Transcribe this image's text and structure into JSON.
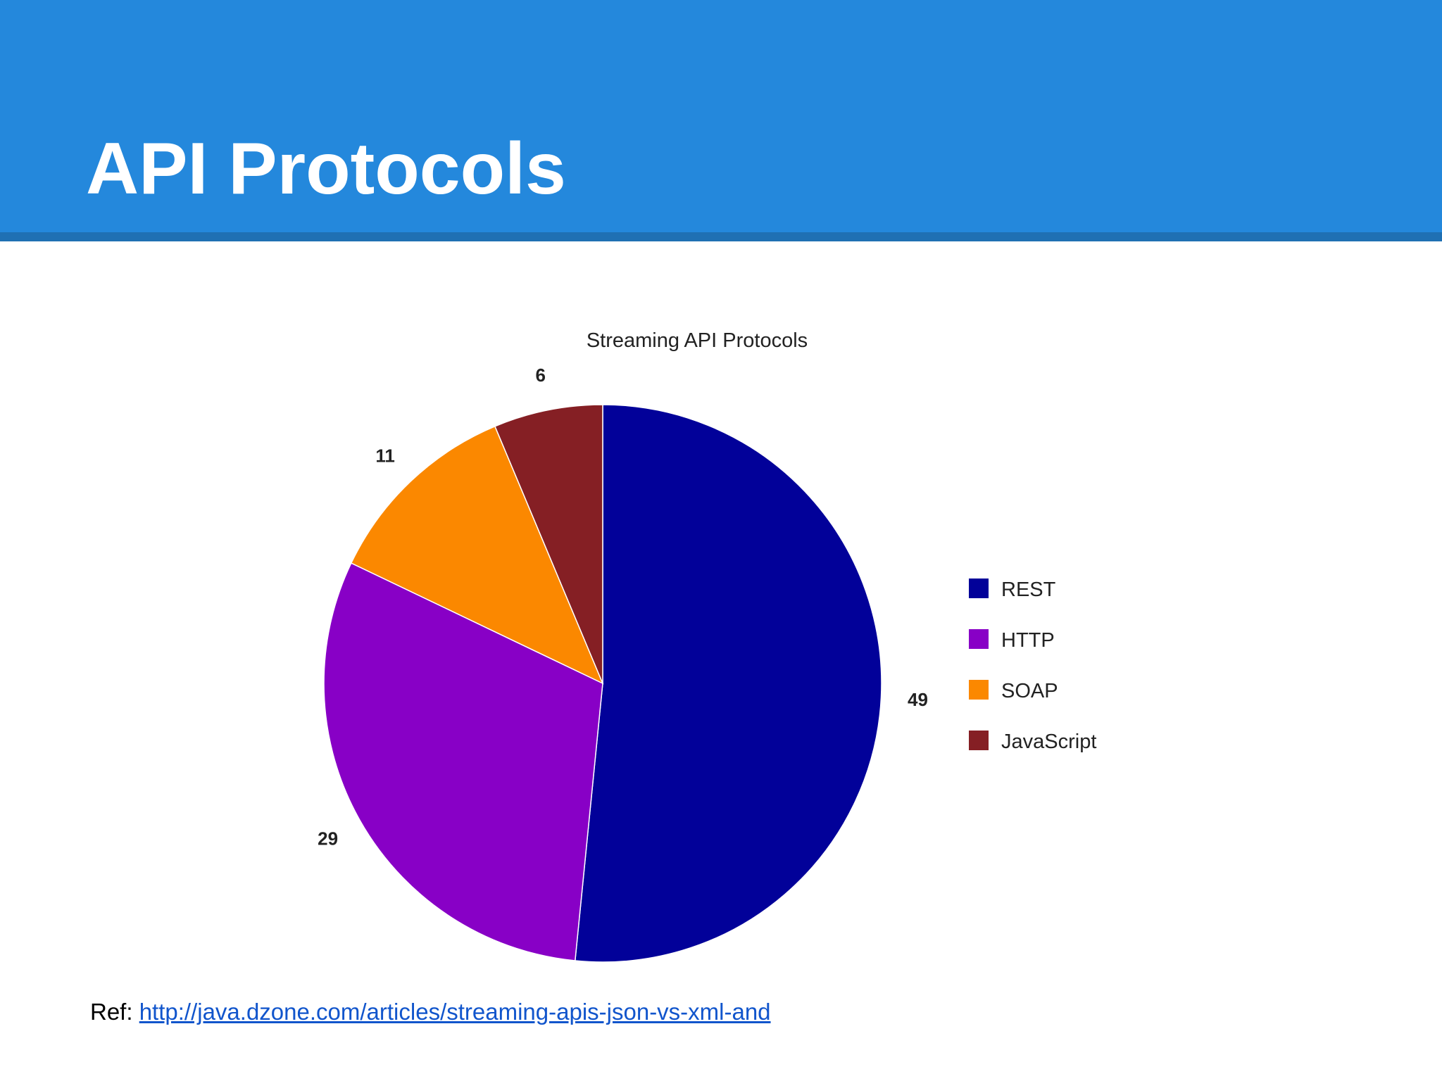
{
  "slide": {
    "title": "API Protocols",
    "ref_label": "Ref:",
    "ref_link_text": "http://java.dzone.com/articles/streaming-apis-json-vs-xml-and"
  },
  "colors": {
    "header_band": "#2488dc",
    "header_rule": "#1f70b3",
    "link": "#1155cc"
  },
  "chart_data": {
    "type": "pie",
    "title": "Streaming API Protocols",
    "categories": [
      "REST",
      "HTTP",
      "SOAP",
      "JavaScript"
    ],
    "values": [
      49,
      29,
      11,
      6
    ],
    "colors": [
      "#020199",
      "#8800c6",
      "#fb8800",
      "#851f24"
    ],
    "start_angle_deg": 0,
    "direction": "clockwise",
    "data_labels": true,
    "legend": {
      "position": "right",
      "entries": [
        "REST",
        "HTTP",
        "SOAP",
        "JavaScript"
      ]
    }
  }
}
